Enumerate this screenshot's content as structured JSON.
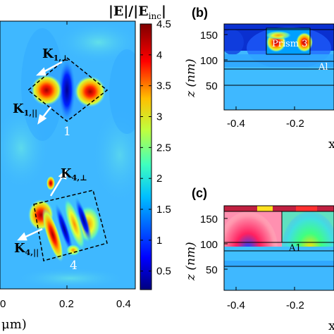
{
  "colorbar": {
    "title_main": "|E|/|E",
    "title_sub": "inc",
    "title_end": "|",
    "ticks": [
      "4.5",
      "4",
      "3.5",
      "3",
      "2.5",
      "2",
      "1.5",
      "1",
      "0.5"
    ],
    "range": [
      0.2,
      4.5
    ],
    "colormap": "jet",
    "stops": [
      "#00007f",
      "#0000ff",
      "#00bfff",
      "#3fffbf",
      "#bfff3f",
      "#ffbf00",
      "#ff0000",
      "#7f0000"
    ]
  },
  "panel_a": {
    "x_ticks": [
      "0",
      "0.2",
      "0.4"
    ],
    "x_label_partial": "μm)",
    "annotations": {
      "k1_perp_main": "K",
      "k1_perp_sub": "1,⊥",
      "k1_par_main": "K",
      "k1_par_sub": "1,||",
      "k4_perp_main": "K",
      "k4_perp_sub": "4,⊥",
      "k4_par_main": "K",
      "k4_par_sub": "4,||",
      "label_1": "1",
      "label_4": "4"
    }
  },
  "panel_b": {
    "panel_label": "(b)",
    "y_ticks": [
      "150",
      "100",
      "50"
    ],
    "y_label": "z (nm)",
    "x_ticks": [
      "-0.4",
      "-0.2"
    ],
    "prism_label": "Prism 3",
    "layer_label": "Al",
    "edge_glyph": "x"
  },
  "panel_c": {
    "panel_label": "(c)",
    "y_ticks": [
      "150",
      "100",
      "50"
    ],
    "y_label": "z (nm)",
    "x_ticks": [
      "-0.4",
      "-0.2"
    ],
    "layer_label": "A1",
    "edge_glyph": "x"
  },
  "chart_data": [
    {
      "type": "heatmap",
      "panel": "a",
      "xlim": [
        0,
        0.4
      ],
      "x_ticks": [
        0,
        0.2,
        0.4
      ],
      "colormap": "jet",
      "value_range": [
        0.2,
        4.5
      ],
      "prisms": [
        {
          "label": "1",
          "shape": "rhombus",
          "center_x": 0.22,
          "peak_value": 4.4
        },
        {
          "label": "4",
          "shape": "tilted-square",
          "center_x": 0.22,
          "peak_value": 4.0
        }
      ]
    },
    {
      "type": "heatmap",
      "panel": "b",
      "ylabel": "z (nm)",
      "ylim": [
        0,
        175
      ],
      "y_ticks": [
        50,
        100,
        150
      ],
      "x_ticks": [
        -0.4,
        -0.2
      ],
      "layers_z": [
        50,
        83,
        95,
        165
      ],
      "annotations": [
        "Prism 3",
        "Al"
      ]
    },
    {
      "type": "heatmap",
      "panel": "c",
      "ylabel": "z (nm)",
      "ylim": [
        0,
        175
      ],
      "y_ticks": [
        50,
        100,
        150
      ],
      "x_ticks": [
        -0.4,
        -0.2
      ],
      "layers_z": [
        50,
        83,
        95,
        165
      ],
      "annotations": [
        "A1"
      ]
    }
  ]
}
